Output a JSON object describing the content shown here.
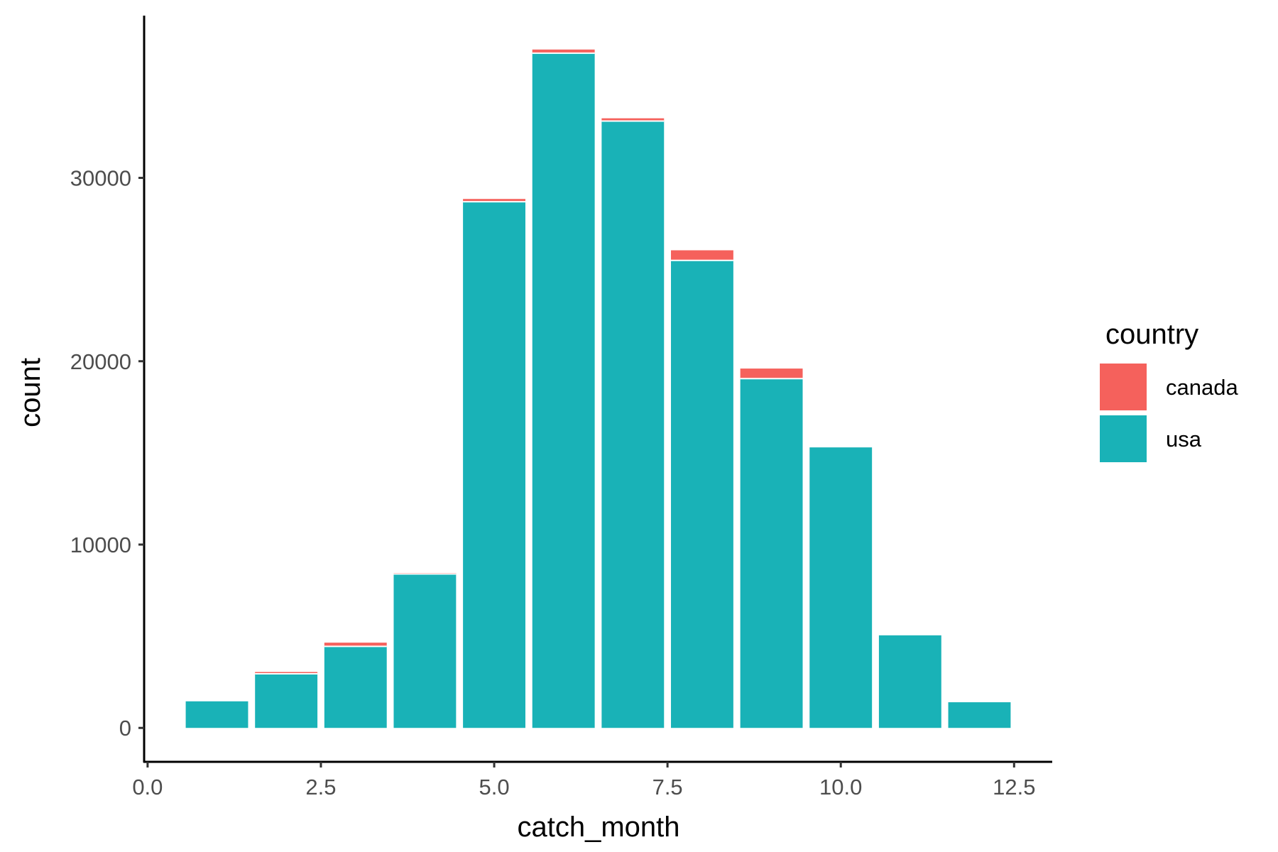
{
  "chart_data": {
    "type": "bar",
    "stacked": true,
    "title": "",
    "xlabel": "catch_month",
    "ylabel": "count",
    "x": [
      1,
      2,
      3,
      4,
      5,
      6,
      7,
      8,
      9,
      10,
      11,
      12
    ],
    "series": [
      {
        "name": "canada",
        "color": "#F8766D",
        "values": [
          0,
          100,
          200,
          50,
          150,
          200,
          150,
          550,
          550,
          0,
          0,
          0
        ]
      },
      {
        "name": "usa",
        "color": "#00BFC4",
        "values": [
          1450,
          2950,
          4450,
          8400,
          28700,
          36800,
          33100,
          25500,
          19050,
          15300,
          5050,
          1400
        ]
      }
    ],
    "xlim": [
      -0.05,
      13.05
    ],
    "ylim": [
      -1850,
      38850
    ],
    "x_ticks": [
      0.0,
      2.5,
      5.0,
      7.5,
      10.0,
      12.5
    ],
    "x_tick_labels": [
      "0.0",
      "2.5",
      "5.0",
      "7.5",
      "10.0",
      "12.5"
    ],
    "y_ticks": [
      0,
      10000,
      20000,
      30000
    ],
    "y_tick_labels": [
      "0",
      "10000",
      "20000",
      "30000"
    ],
    "grid": false,
    "legend": {
      "title": "country",
      "position": "right",
      "entries": [
        {
          "label": "canada",
          "color": "#F8766D"
        },
        {
          "label": "usa",
          "color": "#00BFC4"
        }
      ]
    },
    "bar_color_rendered": {
      "canada": "#F5615C",
      "usa": "#19B2B7"
    }
  }
}
